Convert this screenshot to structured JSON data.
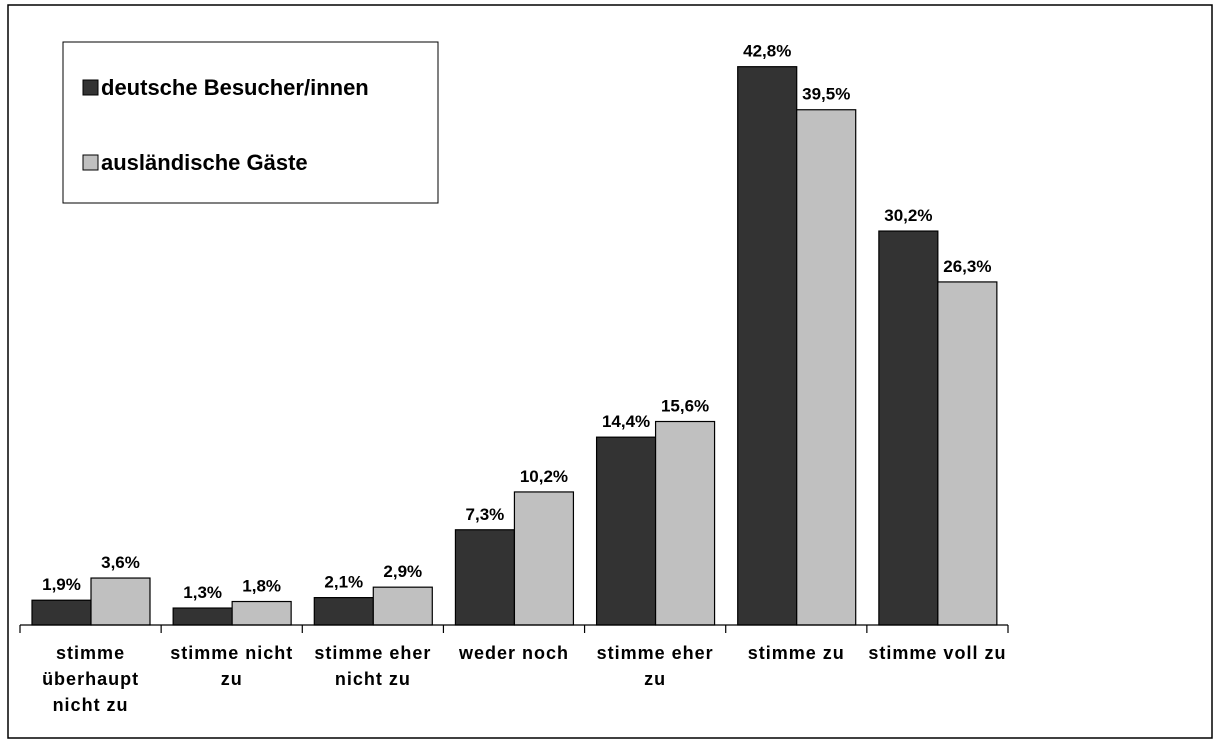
{
  "chart_data": {
    "type": "bar",
    "categories": [
      "stimme überhaupt nicht zu",
      "stimme nicht zu",
      "stimme eher nicht zu",
      "weder noch",
      "stimme eher zu",
      "stimme zu",
      "stimme voll zu"
    ],
    "series": [
      {
        "name": "deutsche Besucher/innen",
        "color": "#333333",
        "values": [
          1.9,
          1.3,
          2.1,
          7.3,
          14.4,
          42.8,
          30.2
        ],
        "value_labels": [
          "1,9%",
          "1,3%",
          "2,1%",
          "7,3%",
          "14,4%",
          "42,8%",
          "30,2%"
        ]
      },
      {
        "name": "ausländische Gäste",
        "color": "#c0c0c0",
        "values": [
          3.6,
          1.8,
          2.9,
          10.2,
          15.6,
          39.5,
          26.3
        ],
        "value_labels": [
          "3,6%",
          "1,8%",
          "2,9%",
          "10,2%",
          "15,6%",
          "39,5%",
          "26,3%"
        ]
      }
    ],
    "ylim": [
      0,
      45
    ],
    "legend": "upper left"
  }
}
